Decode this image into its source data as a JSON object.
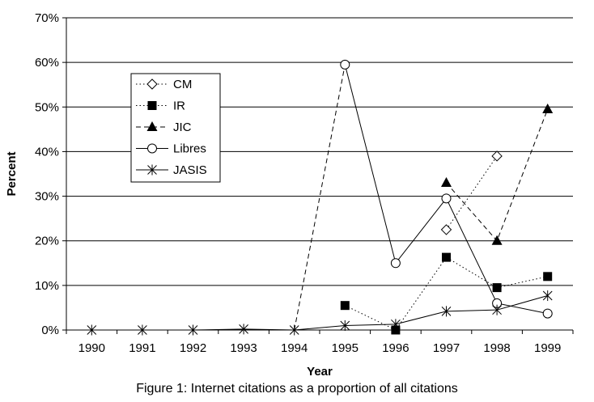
{
  "caption": "Figure 1: Internet citations as a proportion of all citations",
  "chart_data": {
    "type": "line",
    "title": "",
    "xlabel": "Year",
    "ylabel": "Percent",
    "categories": [
      "1990",
      "1991",
      "1992",
      "1993",
      "1994",
      "1995",
      "1996",
      "1997",
      "1998",
      "1999"
    ],
    "ylim": [
      0,
      70
    ],
    "yticks": [
      "0%",
      "10%",
      "20%",
      "30%",
      "40%",
      "50%",
      "60%",
      "70%"
    ],
    "grid": "horizontal",
    "legend_position": "upper-left",
    "series": [
      {
        "name": "CM",
        "marker": "diamond-open",
        "dash": "dotted",
        "values": [
          null,
          null,
          null,
          null,
          null,
          null,
          null,
          22.5,
          39,
          null
        ]
      },
      {
        "name": "IR",
        "marker": "square-filled",
        "dash": "dotted",
        "values": [
          null,
          null,
          null,
          null,
          null,
          5.5,
          0,
          16.3,
          9.5,
          12
        ]
      },
      {
        "name": "JIC",
        "marker": "triangle-filled",
        "dash": "dashed",
        "values": [
          null,
          null,
          null,
          null,
          null,
          null,
          null,
          33,
          20,
          49.5
        ]
      },
      {
        "name": "Libres",
        "marker": "circle-open",
        "dash": "solid",
        "values": [
          null,
          null,
          null,
          null,
          null,
          59.5,
          15,
          29.5,
          6,
          3.7
        ]
      },
      {
        "name": "JASIS",
        "marker": "asterisk",
        "dash": "solid",
        "values": [
          0,
          0,
          0,
          0.2,
          0,
          1,
          1.3,
          4.2,
          4.5,
          7.7
        ]
      }
    ],
    "extra_segments": [
      {
        "series": "JASIS",
        "dash": "dashed",
        "from": [
          "1994",
          0
        ],
        "to": [
          "1995",
          59.5
        ]
      }
    ]
  }
}
